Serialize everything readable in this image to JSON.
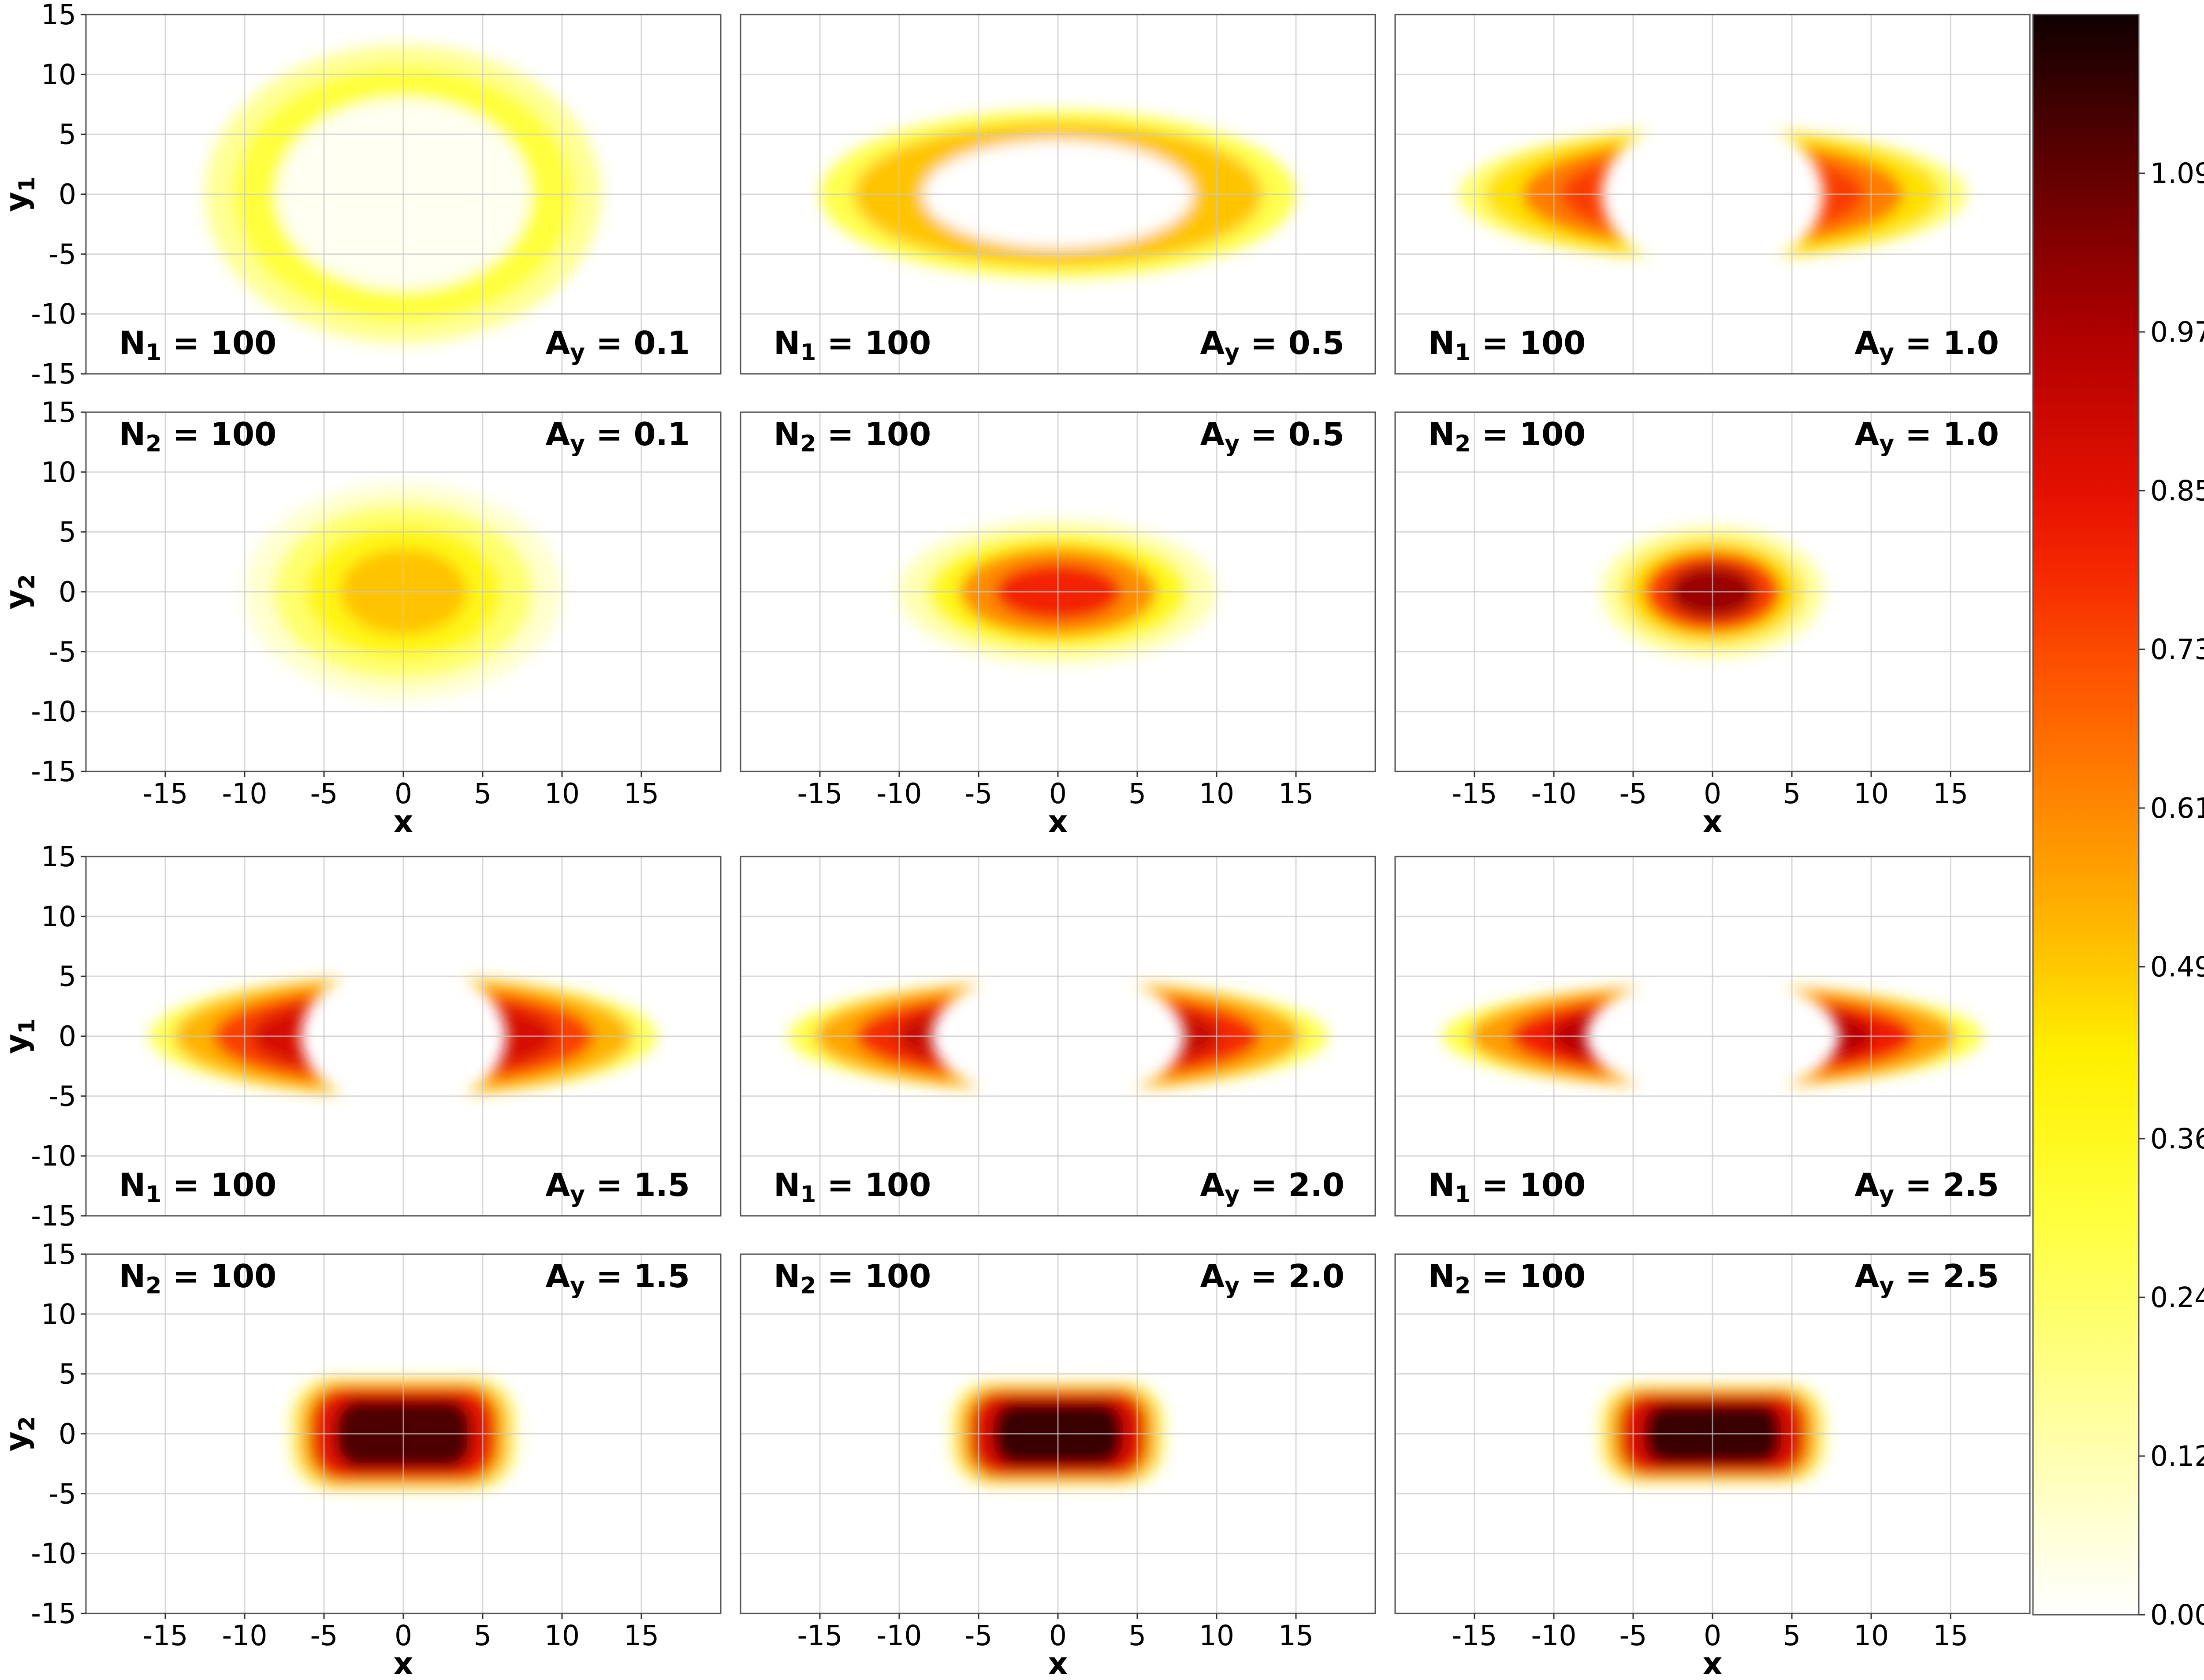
{
  "chart_data": {
    "type": "heatmap",
    "layout": "4x3 grid of density heatmaps with shared colorbar",
    "colormap": "hot (reversed: white = 0, yellow, orange, red, black = max)",
    "grid": true,
    "xlim": [
      -20,
      20
    ],
    "ylim": [
      -15,
      15
    ],
    "x_ticks": [
      "-15",
      "-10",
      "-5",
      "0",
      "5",
      "10",
      "15"
    ],
    "y_ticks": [
      "15",
      "10",
      "5",
      "0",
      "-5",
      "-10",
      "-15"
    ],
    "colorbar": {
      "ticks": [
        "0.00",
        "0.12",
        "0.24",
        "0.36",
        "0.49",
        "0.61",
        "0.73",
        "0.85",
        "0.97",
        "1.09"
      ],
      "tick_values": [
        0.0,
        0.12,
        0.24,
        0.36,
        0.49,
        0.61,
        0.73,
        0.85,
        0.97,
        1.09
      ],
      "range": [
        0,
        1.21
      ]
    },
    "panels": [
      {
        "row": 0,
        "col": 0,
        "ylabel_base": "y",
        "ylabel_sub": "1",
        "n_base": "N",
        "n_sub": "1",
        "n_val": " = 100",
        "a_base": "A",
        "a_sub": "y",
        "a_val": " = 0.1",
        "label_pos": "bottom",
        "shape": "ring",
        "cx": 0,
        "cy": 0,
        "rx": 12.5,
        "ry": 12.5,
        "inner_rx": 8,
        "inner_ry": 8,
        "peak": 0.3,
        "inner_level": 0.02
      },
      {
        "row": 0,
        "col": 1,
        "ylabel_base": "",
        "ylabel_sub": "",
        "n_base": "N",
        "n_sub": "1",
        "n_val": " = 100",
        "a_base": "A",
        "a_sub": "y",
        "a_val": " = 0.5",
        "label_pos": "bottom",
        "shape": "ring",
        "cx": 0,
        "cy": 0,
        "rx": 15,
        "ry": 7,
        "inner_rx": 8.5,
        "inner_ry": 4.5,
        "peak": 0.5,
        "inner_level": 0.0
      },
      {
        "row": 0,
        "col": 2,
        "ylabel_base": "",
        "ylabel_sub": "",
        "n_base": "N",
        "n_sub": "1",
        "n_val": " = 100",
        "a_base": "A",
        "a_sub": "y",
        "a_val": " = 1.0",
        "label_pos": "bottom",
        "shape": "crescents",
        "cx": 0,
        "cy": 0,
        "rx": 16,
        "ry": 5.5,
        "inner_rx": 7,
        "inner_ry": 6.5,
        "peak": 0.75
      },
      {
        "row": 1,
        "col": 0,
        "ylabel_base": "y",
        "ylabel_sub": "2",
        "n_base": "N",
        "n_sub": "2",
        "n_val": " = 100",
        "a_base": "A",
        "a_sub": "y",
        "a_val": " = 0.1",
        "label_pos": "top",
        "shape": "blob",
        "cx": 0,
        "cy": 0,
        "rx": 10,
        "ry": 9,
        "peak": 0.5
      },
      {
        "row": 1,
        "col": 1,
        "ylabel_base": "",
        "ylabel_sub": "",
        "n_base": "N",
        "n_sub": "2",
        "n_val": " = 100",
        "a_base": "A",
        "a_sub": "y",
        "a_val": " = 0.5",
        "label_pos": "top",
        "shape": "blob",
        "cx": 0,
        "cy": 0,
        "rx": 10,
        "ry": 6,
        "peak": 0.8
      },
      {
        "row": 1,
        "col": 2,
        "ylabel_base": "",
        "ylabel_sub": "",
        "n_base": "N",
        "n_sub": "2",
        "n_val": " = 100",
        "a_base": "A",
        "a_sub": "y",
        "a_val": " = 1.0",
        "label_pos": "top",
        "shape": "blob",
        "cx": 0,
        "cy": 0,
        "rx": 7,
        "ry": 5.5,
        "peak": 1.0
      },
      {
        "row": 2,
        "col": 0,
        "ylabel_base": "y",
        "ylabel_sub": "1",
        "n_base": "N",
        "n_sub": "1",
        "n_val": " = 100",
        "a_base": "A",
        "a_sub": "y",
        "a_val": " = 1.5",
        "label_pos": "bottom",
        "shape": "crescents",
        "cx": 0,
        "cy": 0,
        "rx": 16,
        "ry": 5,
        "inner_rx": 6.5,
        "inner_ry": 6,
        "peak": 0.88
      },
      {
        "row": 2,
        "col": 1,
        "ylabel_base": "",
        "ylabel_sub": "",
        "n_base": "N",
        "n_sub": "1",
        "n_val": " = 100",
        "a_base": "A",
        "a_sub": "y",
        "a_val": " = 2.0",
        "label_pos": "bottom",
        "shape": "crescents",
        "cx": 0,
        "cy": 0,
        "rx": 17,
        "ry": 4.6,
        "inner_rx": 8,
        "inner_ry": 5.5,
        "peak": 0.92
      },
      {
        "row": 2,
        "col": 2,
        "ylabel_base": "",
        "ylabel_sub": "",
        "n_base": "N",
        "n_sub": "1",
        "n_val": " = 100",
        "a_base": "A",
        "a_sub": "y",
        "a_val": " = 2.5",
        "label_pos": "bottom",
        "shape": "crescents",
        "cx": 0,
        "cy": 0,
        "rx": 17,
        "ry": 4.3,
        "inner_rx": 8,
        "inner_ry": 5,
        "peak": 0.95
      },
      {
        "row": 3,
        "col": 0,
        "ylabel_base": "y",
        "ylabel_sub": "2",
        "n_base": "N",
        "n_sub": "2",
        "n_val": " = 100",
        "a_base": "A",
        "a_sub": "y",
        "a_val": " = 1.5",
        "label_pos": "top",
        "shape": "rounded",
        "cx": 0,
        "cy": 0,
        "rx": 7.2,
        "ry": 4.8,
        "peak": 1.12
      },
      {
        "row": 3,
        "col": 1,
        "ylabel_base": "",
        "ylabel_sub": "",
        "n_base": "N",
        "n_sub": "2",
        "n_val": " = 100",
        "a_base": "A",
        "a_sub": "y",
        "a_val": " = 2.0",
        "label_pos": "top",
        "shape": "rounded",
        "cx": 0,
        "cy": 0,
        "rx": 6.8,
        "ry": 4.4,
        "peak": 1.15
      },
      {
        "row": 3,
        "col": 2,
        "ylabel_base": "",
        "ylabel_sub": "",
        "n_base": "N",
        "n_sub": "2",
        "n_val": " = 100",
        "a_base": "A",
        "a_sub": "y",
        "a_val": " = 2.5",
        "label_pos": "top",
        "shape": "rounded",
        "cx": 0,
        "cy": 0,
        "rx": 7.2,
        "ry": 4.2,
        "peak": 1.15
      }
    ],
    "xlabel": "x"
  }
}
